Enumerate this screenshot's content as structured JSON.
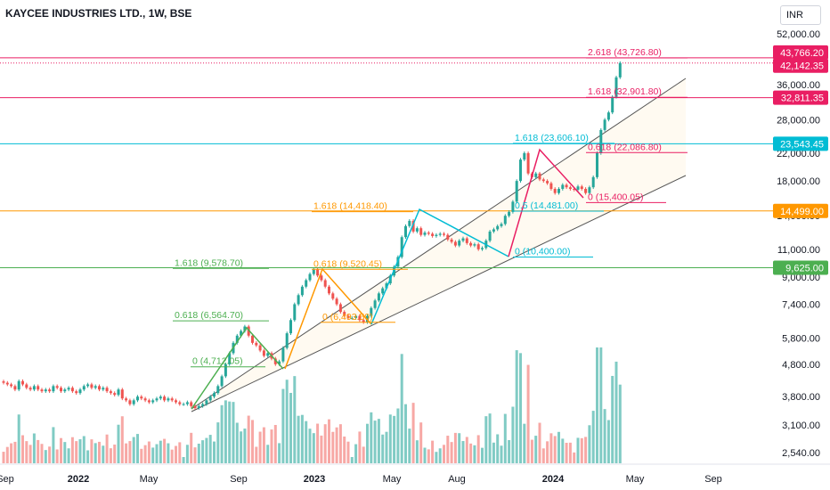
{
  "chart_data": {
    "type": "candlestick",
    "title": "KAYCEE INDUSTRIES LTD., 1W, BSE",
    "currency": "INR",
    "y_scale": "log",
    "ylim": [
      2350,
      52000
    ],
    "y_ticks": [
      "52,000.00",
      "36,000.00",
      "28,000.00",
      "22,000.00",
      "18,000.00",
      "14,000.00",
      "11,000.00",
      "9,000.00",
      "7,400.00",
      "5,800.00",
      "4,800.00",
      "3,800.00",
      "3,100.00",
      "2,540.00"
    ],
    "x_ticks": [
      "Sep",
      "2022",
      "May",
      "Sep",
      "2023",
      "May",
      "Aug",
      "2024",
      "May",
      "Sep"
    ],
    "price_badges": [
      {
        "label": "43,766.20",
        "value": 43766.2,
        "color": "#e91e63"
      },
      {
        "label": "42,142.35",
        "value": 42142.35,
        "color": "#e91e63"
      },
      {
        "label": "32,811.35",
        "value": 32811.35,
        "color": "#e91e63"
      },
      {
        "label": "23,543.45",
        "value": 23543.45,
        "color": "#00bcd4"
      },
      {
        "label": "14,499.00",
        "value": 14499,
        "color": "#ff9800"
      },
      {
        "label": "9,625.00",
        "value": 9625,
        "color": "#4caf50"
      }
    ],
    "fib_labels": [
      {
        "text": "2.618 (43,726.80)",
        "value": 43726.8,
        "color": "#e91e63"
      },
      {
        "text": "1.618 (32,901.80)",
        "value": 32901.8,
        "color": "#e91e63"
      },
      {
        "text": "0.618 (22,086.80)",
        "value": 22086.8,
        "color": "#e91e63"
      },
      {
        "text": "0 (15,400.05)",
        "value": 15400.05,
        "color": "#e91e63"
      },
      {
        "text": "1.618 (23,606.10)",
        "value": 23606.1,
        "color": "#00bcd4"
      },
      {
        "text": "0.5 (14,481.00)",
        "value": 14481,
        "color": "#00bcd4"
      },
      {
        "text": "0 (10,400.00)",
        "value": 10400,
        "color": "#00bcd4"
      },
      {
        "text": "1.618 (14,418.40)",
        "value": 14418.4,
        "color": "#ff9800"
      },
      {
        "text": "0.618 (9,520.45)",
        "value": 9520.45,
        "color": "#ff9800"
      },
      {
        "text": "0 (6,493.50)",
        "value": 6493.5,
        "color": "#ff9800"
      },
      {
        "text": "1.618 (9,578.70)",
        "value": 9578.7,
        "color": "#4caf50"
      },
      {
        "text": "0.618 (6,564.70)",
        "value": 6564.7,
        "color": "#4caf50"
      },
      {
        "text": "0 (4,712.05)",
        "value": 4712.05,
        "color": "#4caf50"
      }
    ],
    "closes": [
      4200,
      4150,
      4100,
      4000,
      4250,
      4150,
      4050,
      4000,
      4100,
      4000,
      3950,
      4000,
      3950,
      4100,
      4050,
      3950,
      4000,
      4050,
      3950,
      3900,
      4000,
      4100,
      4150,
      4050,
      4100,
      4000,
      4050,
      3950,
      3900,
      3850,
      4000,
      3750,
      3700,
      3600,
      3700,
      3800,
      3750,
      3700,
      3650,
      3700,
      3750,
      3800,
      3700,
      3750,
      3700,
      3650,
      3600,
      3600,
      3650,
      3550,
      3500,
      3550,
      3600,
      3700,
      3800,
      3900,
      4100,
      4400,
      4800,
      5200,
      5600,
      5900,
      6100,
      6300,
      5900,
      5600,
      5500,
      5300,
      5100,
      5200,
      5000,
      4800,
      4900,
      5400,
      6000,
      6600,
      7400,
      7900,
      8400,
      8800,
      9200,
      9500,
      9100,
      8800,
      8400,
      8000,
      7700,
      7400,
      7000,
      6800,
      6700,
      6700,
      6800,
      6600,
      6500,
      6800,
      7200,
      7600,
      8000,
      8300,
      8600,
      9100,
      9700,
      10400,
      12000,
      13000,
      13500,
      12500,
      12800,
      12200,
      12400,
      12300,
      12100,
      12200,
      12300,
      12200,
      11800,
      11600,
      11300,
      11700,
      11900,
      11500,
      11300,
      11400,
      11000,
      11100,
      11700,
      12500,
      12700,
      13000,
      13200,
      14000,
      14400,
      15500,
      18000,
      21000,
      22000,
      19000,
      18500,
      19000,
      18200,
      18000,
      17700,
      17000,
      16500,
      17000,
      17500,
      17200,
      17000,
      16900,
      17300,
      17000,
      16500,
      17200,
      18500,
      22000,
      26000,
      28000,
      29500,
      33000,
      38000,
      42142
    ]
  }
}
